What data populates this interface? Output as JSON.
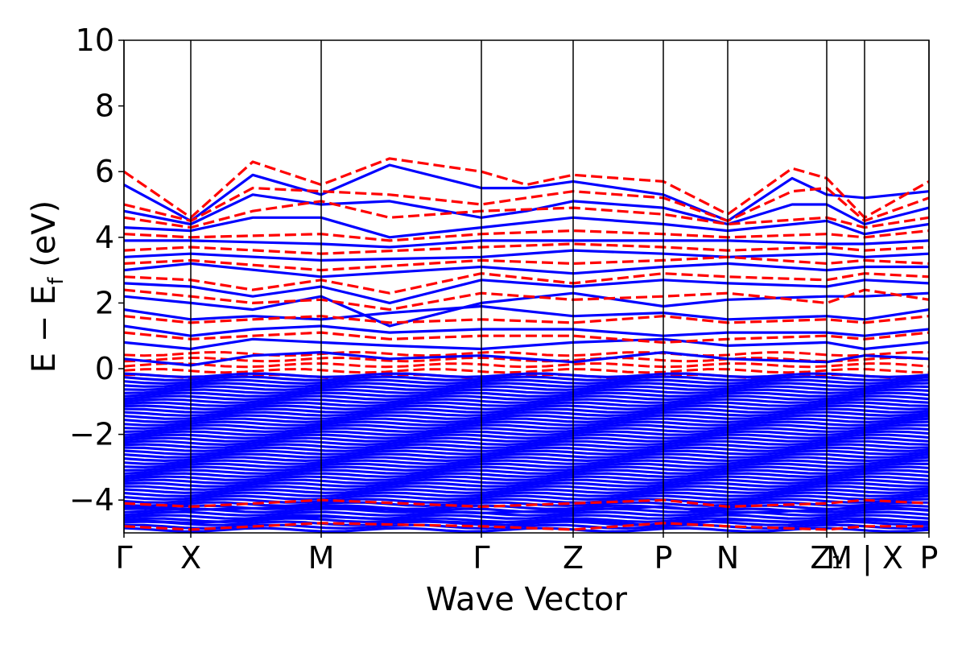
{
  "chart_data": {
    "type": "line",
    "title": "",
    "xlabel": "Wave Vector",
    "ylabel_parts": {
      "main": "E − E",
      "sub": "f",
      "unit": " (eV)"
    },
    "ylim": [
      -5,
      10
    ],
    "yticks": [
      10,
      8,
      6,
      4,
      2,
      0,
      -2,
      -4
    ],
    "ytick_labels": [
      "10",
      "8",
      "6",
      "4",
      "2",
      "0",
      "−2",
      "−4"
    ],
    "x_range": [
      0,
      1
    ],
    "kpoints": [
      {
        "label": "Γ",
        "x": 0.0
      },
      {
        "label": "X",
        "x": 0.083
      },
      {
        "label": "M",
        "x": 0.245
      },
      {
        "label": "Γ",
        "x": 0.444
      },
      {
        "label": "Z",
        "x": 0.558
      },
      {
        "label": "P",
        "x": 0.67
      },
      {
        "label": "N",
        "x": 0.75
      },
      {
        "label": "Z₁",
        "x": 0.873
      },
      {
        "label": "M | X",
        "x": 0.92
      },
      {
        "label": "P",
        "x": 1.0
      }
    ],
    "grid": false,
    "colors": {
      "spin_up": "#0000ff",
      "spin_down": "#ff0000"
    },
    "series": [
      {
        "style": "solid",
        "color": "#0000ff",
        "bands": [
          {
            "x": [
              0,
              0.083,
              0.16,
              0.245,
              0.33,
              0.444,
              0.5,
              0.558,
              0.67,
              0.75,
              0.83,
              0.873,
              0.92,
              1.0
            ],
            "y": [
              5.6,
              4.5,
              5.9,
              5.3,
              6.2,
              5.5,
              5.5,
              5.7,
              5.3,
              4.5,
              5.8,
              5.3,
              5.2,
              5.4
            ]
          },
          {
            "x": [
              0,
              0.083,
              0.16,
              0.245,
              0.33,
              0.444,
              0.5,
              0.558,
              0.67,
              0.75,
              0.83,
              0.873,
              0.92,
              1.0
            ],
            "y": [
              4.8,
              4.4,
              5.3,
              5.0,
              5.1,
              4.6,
              4.8,
              5.1,
              4.9,
              4.4,
              5.0,
              5.0,
              4.4,
              4.9
            ]
          },
          {
            "x": [
              0,
              0.083,
              0.16,
              0.245,
              0.33,
              0.444,
              0.558,
              0.67,
              0.75,
              0.873,
              0.92,
              1.0
            ],
            "y": [
              4.3,
              4.2,
              4.6,
              4.6,
              4.0,
              4.3,
              4.6,
              4.4,
              4.2,
              4.5,
              4.1,
              4.4
            ]
          },
          {
            "x": [
              0,
              0.083,
              0.245,
              0.33,
              0.444,
              0.558,
              0.67,
              0.75,
              0.873,
              0.92,
              1.0
            ],
            "y": [
              3.9,
              3.9,
              3.8,
              3.7,
              3.9,
              3.9,
              3.9,
              3.9,
              3.8,
              3.8,
              3.9
            ]
          },
          {
            "x": [
              0,
              0.083,
              0.245,
              0.444,
              0.558,
              0.67,
              0.75,
              0.873,
              0.92,
              1.0
            ],
            "y": [
              3.4,
              3.5,
              3.3,
              3.4,
              3.6,
              3.5,
              3.4,
              3.5,
              3.4,
              3.5
            ]
          },
          {
            "x": [
              0,
              0.083,
              0.245,
              0.444,
              0.558,
              0.67,
              0.75,
              0.873,
              0.92,
              1.0
            ],
            "y": [
              3.0,
              3.2,
              2.8,
              3.1,
              2.9,
              3.1,
              3.2,
              3.0,
              3.1,
              3.1
            ]
          },
          {
            "x": [
              0,
              0.083,
              0.16,
              0.245,
              0.33,
              0.444,
              0.558,
              0.67,
              0.75,
              0.873,
              0.92,
              1.0
            ],
            "y": [
              2.6,
              2.5,
              2.2,
              2.5,
              2.0,
              2.7,
              2.5,
              2.7,
              2.6,
              2.5,
              2.7,
              2.6
            ]
          },
          {
            "x": [
              0,
              0.083,
              0.16,
              0.245,
              0.33,
              0.444,
              0.558,
              0.67,
              0.75,
              0.873,
              0.92,
              1.0
            ],
            "y": [
              2.2,
              2.0,
              1.8,
              2.2,
              1.3,
              2.0,
              2.3,
              1.9,
              2.1,
              2.2,
              2.2,
              2.3
            ]
          },
          {
            "x": [
              0,
              0.083,
              0.16,
              0.245,
              0.33,
              0.444,
              0.558,
              0.67,
              0.75,
              0.873,
              0.92,
              1.0
            ],
            "y": [
              1.8,
              1.5,
              1.6,
              1.5,
              1.7,
              1.9,
              1.6,
              1.7,
              1.5,
              1.6,
              1.5,
              1.8
            ]
          },
          {
            "x": [
              0,
              0.083,
              0.16,
              0.245,
              0.33,
              0.444,
              0.558,
              0.67,
              0.75,
              0.873,
              0.92,
              1.0
            ],
            "y": [
              1.3,
              1.0,
              1.2,
              1.3,
              1.1,
              1.2,
              1.2,
              1.0,
              1.1,
              1.1,
              1.0,
              1.2
            ]
          },
          {
            "x": [
              0,
              0.083,
              0.16,
              0.245,
              0.33,
              0.444,
              0.558,
              0.67,
              0.75,
              0.873,
              0.92,
              1.0
            ],
            "y": [
              0.8,
              0.6,
              0.9,
              0.8,
              0.7,
              0.6,
              0.8,
              0.9,
              0.7,
              0.8,
              0.6,
              0.8
            ]
          },
          {
            "x": [
              0,
              0.083,
              0.16,
              0.245,
              0.33,
              0.444,
              0.558,
              0.67,
              0.75,
              0.873,
              0.92,
              1.0
            ],
            "y": [
              0.3,
              0.1,
              0.4,
              0.5,
              0.3,
              0.4,
              0.2,
              0.5,
              0.3,
              0.2,
              0.4,
              0.3
            ]
          },
          {
            "x": [
              0,
              0.083,
              0.245,
              0.444,
              0.558,
              0.67,
              0.75,
              0.873,
              0.92,
              1.0
            ],
            "y": [
              -4.2,
              -4.3,
              -4.2,
              -4.4,
              -4.3,
              -4.2,
              -4.4,
              -4.3,
              -4.2,
              -4.3
            ]
          },
          {
            "x": [
              0,
              0.083,
              0.245,
              0.444,
              0.558,
              0.67,
              0.75,
              0.873,
              0.92,
              1.0
            ],
            "y": [
              -4.6,
              -4.7,
              -4.5,
              -4.7,
              -4.6,
              -4.8,
              -4.6,
              -4.7,
              -4.6,
              -4.7
            ]
          }
        ]
      },
      {
        "style": "dashed",
        "color": "#ff0000",
        "bands": [
          {
            "x": [
              0,
              0.083,
              0.16,
              0.245,
              0.33,
              0.444,
              0.5,
              0.558,
              0.67,
              0.75,
              0.83,
              0.873,
              0.92,
              1.0
            ],
            "y": [
              6.0,
              4.6,
              6.3,
              5.6,
              6.4,
              6.0,
              5.6,
              5.9,
              5.7,
              4.7,
              6.1,
              5.8,
              4.6,
              5.7
            ]
          },
          {
            "x": [
              0,
              0.083,
              0.16,
              0.245,
              0.33,
              0.444,
              0.5,
              0.558,
              0.67,
              0.75,
              0.83,
              0.873,
              0.92,
              1.0
            ],
            "y": [
              5.0,
              4.5,
              5.5,
              5.4,
              5.3,
              5.0,
              5.2,
              5.4,
              5.2,
              4.5,
              5.4,
              5.5,
              4.5,
              5.2
            ]
          },
          {
            "x": [
              0,
              0.083,
              0.16,
              0.245,
              0.33,
              0.444,
              0.558,
              0.67,
              0.75,
              0.873,
              0.92,
              1.0
            ],
            "y": [
              4.6,
              4.3,
              4.8,
              5.1,
              4.6,
              4.8,
              4.9,
              4.7,
              4.4,
              4.6,
              4.3,
              4.6
            ]
          },
          {
            "x": [
              0,
              0.083,
              0.245,
              0.33,
              0.444,
              0.558,
              0.67,
              0.75,
              0.873,
              0.92,
              1.0
            ],
            "y": [
              4.1,
              4.0,
              4.1,
              3.9,
              4.1,
              4.2,
              4.1,
              4.0,
              4.1,
              4.0,
              4.2
            ]
          },
          {
            "x": [
              0,
              0.083,
              0.245,
              0.444,
              0.558,
              0.67,
              0.75,
              0.873,
              0.92,
              1.0
            ],
            "y": [
              3.6,
              3.7,
              3.5,
              3.7,
              3.8,
              3.7,
              3.6,
              3.7,
              3.6,
              3.7
            ]
          },
          {
            "x": [
              0,
              0.083,
              0.245,
              0.444,
              0.558,
              0.67,
              0.75,
              0.873,
              0.92,
              1.0
            ],
            "y": [
              3.2,
              3.3,
              3.0,
              3.3,
              3.2,
              3.3,
              3.4,
              3.2,
              3.3,
              3.2
            ]
          },
          {
            "x": [
              0,
              0.083,
              0.16,
              0.245,
              0.33,
              0.444,
              0.558,
              0.67,
              0.75,
              0.873,
              0.92,
              1.0
            ],
            "y": [
              2.8,
              2.7,
              2.4,
              2.7,
              2.3,
              2.9,
              2.6,
              2.9,
              2.8,
              2.7,
              2.9,
              2.8
            ]
          },
          {
            "x": [
              0,
              0.083,
              0.16,
              0.245,
              0.33,
              0.444,
              0.558,
              0.67,
              0.75,
              0.873,
              0.92,
              1.0
            ],
            "y": [
              2.4,
              2.2,
              2.0,
              2.1,
              1.8,
              2.3,
              2.1,
              2.2,
              2.3,
              2.0,
              2.4,
              2.1
            ]
          },
          {
            "x": [
              0,
              0.083,
              0.16,
              0.245,
              0.33,
              0.444,
              0.558,
              0.67,
              0.75,
              0.873,
              0.92,
              1.0
            ],
            "y": [
              1.6,
              1.4,
              1.5,
              1.6,
              1.4,
              1.5,
              1.4,
              1.6,
              1.4,
              1.5,
              1.4,
              1.6
            ]
          },
          {
            "x": [
              0,
              0.083,
              0.16,
              0.245,
              0.33,
              0.444,
              0.558,
              0.67,
              0.75,
              0.873,
              0.92,
              1.0
            ],
            "y": [
              1.1,
              0.9,
              1.0,
              1.1,
              0.9,
              1.0,
              1.0,
              0.8,
              0.9,
              1.0,
              0.9,
              1.1
            ]
          },
          {
            "x": [
              0,
              0.083,
              0.245,
              0.444,
              0.558,
              0.67,
              0.75,
              0.873,
              0.92,
              1.0
            ],
            "y": [
              -4.1,
              -4.2,
              -4.0,
              -4.2,
              -4.1,
              -4.0,
              -4.2,
              -4.1,
              -4.0,
              -4.1
            ]
          },
          {
            "x": [
              0,
              0.083,
              0.245,
              0.444,
              0.558,
              0.67,
              0.75,
              0.873,
              0.92,
              1.0
            ],
            "y": [
              -4.8,
              -4.9,
              -4.7,
              -4.8,
              -4.9,
              -4.7,
              -4.8,
              -4.9,
              -4.8,
              -4.8
            ]
          }
        ]
      }
    ],
    "dense_regions": [
      {
        "color": "#ff0000",
        "style": "dashed",
        "ymin": -0.3,
        "ymax": 0.45
      },
      {
        "color": "#0000ff",
        "style": "solid",
        "ymin": -5.0,
        "ymax": -0.2
      }
    ]
  }
}
